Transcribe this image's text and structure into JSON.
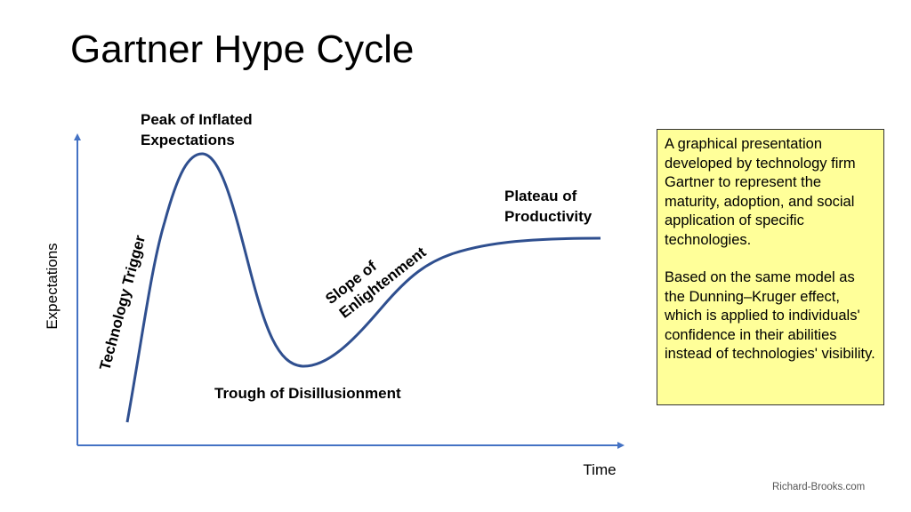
{
  "slide": {
    "title": "Gartner Hype Cycle",
    "credit": "Richard-Brooks.com"
  },
  "diagram": {
    "y_axis_label": "Expectations",
    "x_axis_label": "Time",
    "phases": {
      "technology_trigger": "Technology Trigger",
      "peak_line1": "Peak of Inflated",
      "peak_line2": "Expectations",
      "trough": "Trough of Disillusionment",
      "slope_line1": "Slope of",
      "slope_line2": "Enlightenment",
      "plateau_line1": "Plateau of",
      "plateau_line2": "Productivity"
    },
    "colors": {
      "axis": "#4472c4",
      "curve": "#2f4f8f"
    }
  },
  "info_box": {
    "paragraph1": "A graphical presentation developed by technology firm Gartner to represent the maturity, adoption, and social application of specific technologies.",
    "paragraph2": "Based on the same model as the Dunning–Kruger effect, which is applied to individuals' confidence in their abilities instead of technologies' visibility.",
    "background": "#ffff99"
  }
}
